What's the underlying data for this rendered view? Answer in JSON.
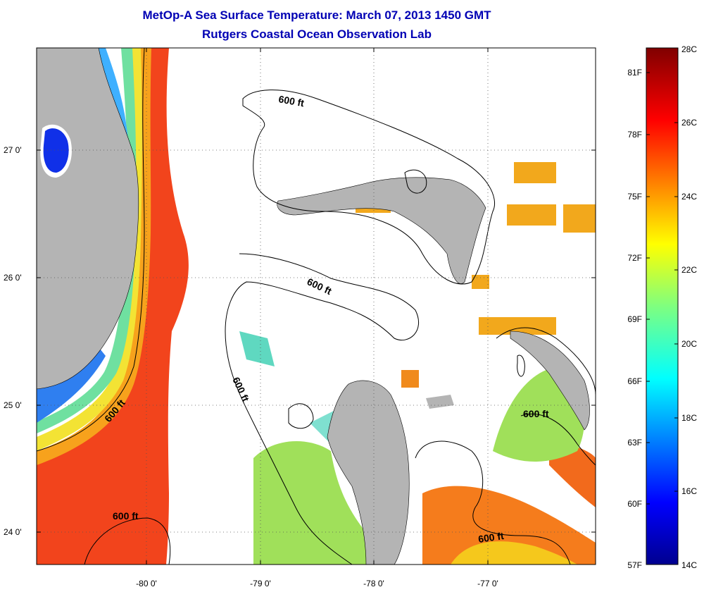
{
  "header": {
    "title": "MetOp-A Sea Surface Temperature:  March 07, 2013 1450 GMT",
    "subtitle": "Rutgers Coastal Ocean Observation Lab"
  },
  "map": {
    "lat_labels": [
      "27 0'",
      "26 0'",
      "25 0'",
      "24 0'"
    ],
    "lon_labels": [
      "-80 0'",
      "-79 0'",
      "-78 0'",
      "-77 0'"
    ],
    "contour_label": "600 ft",
    "colors": {
      "land": "#b4b4b4",
      "cloud": "#ffffff"
    }
  },
  "colorbar": {
    "celsius": [
      "28C",
      "26C",
      "24C",
      "22C",
      "20C",
      "18C",
      "16C",
      "14C"
    ],
    "fahrenheit": [
      "81F",
      "78F",
      "75F",
      "72F",
      "69F",
      "66F",
      "63F",
      "60F",
      "57F"
    ]
  }
}
